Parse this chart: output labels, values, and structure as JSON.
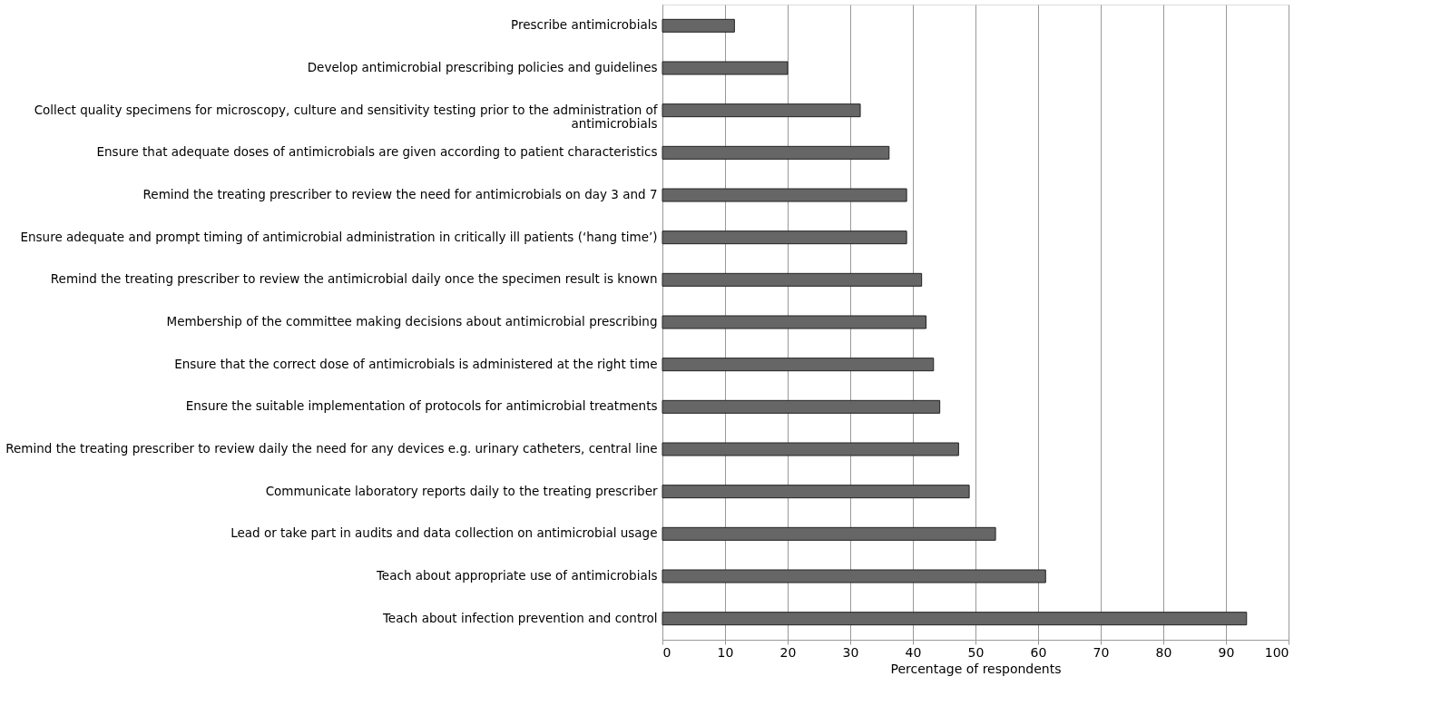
{
  "chart_data": {
    "type": "bar",
    "orientation": "horizontal",
    "xlabel": "Percentage of respondents",
    "categories": [
      "Prescribe antimicrobials",
      "Develop antimicrobial prescribing policies and guidelines",
      "Collect quality specimens for microscopy, culture and sensitivity testing prior to the administration of antimicrobials",
      "Ensure that adequate doses of antimicrobials are given according to patient characteristics",
      "Remind the treating prescriber to review the need for antimicrobials on day 3 and 7",
      "Ensure adequate and prompt timing of antimicrobial administration in critically ill patients (‘hang time’)",
      "Remind the treating prescriber to review the antimicrobial daily once the specimen result is known",
      "Membership of the committee making decisions about antimicrobial prescribing",
      "Ensure that the correct dose of antimicrobials is administered at the right time",
      "Ensure the suitable implementation of protocols for antimicrobial treatments",
      "Remind the treating prescriber to review daily the need for any devices e.g. urinary catheters, central line",
      "Communicate laboratory reports daily to the treating prescriber",
      "Lead or take part in audits and data collection on antimicrobial usage",
      "Teach about appropriate use of antimicrobials",
      "Teach about infection prevention and control"
    ],
    "values": [
      11.5,
      20,
      31.6,
      36.2,
      39,
      39,
      41.4,
      42.1,
      43.3,
      44.3,
      47.3,
      49,
      53.2,
      61.2,
      93.3
    ],
    "color": "#666666",
    "xlim": [
      0,
      100
    ],
    "xticks": [
      0,
      10,
      20,
      30,
      40,
      50,
      60,
      70,
      80,
      90,
      100
    ],
    "grid": "x"
  }
}
